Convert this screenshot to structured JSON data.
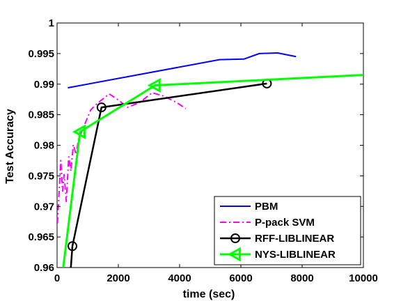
{
  "chart_data": {
    "type": "line",
    "title": "",
    "xlabel": "time (sec)",
    "ylabel": "Test Accuracy",
    "xlim": [
      0,
      10000
    ],
    "ylim": [
      0.96,
      1.0
    ],
    "xticks": [
      0,
      2000,
      4000,
      6000,
      8000,
      10000
    ],
    "xtick_labels": [
      "0",
      "2000",
      "4000",
      "6000",
      "8000",
      "10000"
    ],
    "yticks": [
      0.96,
      0.965,
      0.97,
      0.975,
      0.98,
      0.985,
      0.99,
      0.995,
      1.0
    ],
    "ytick_labels": [
      "0.96",
      "0.965",
      "0.97",
      "0.975",
      "0.98",
      "0.985",
      "0.99",
      "0.995",
      "1"
    ],
    "grid": false,
    "legend_position": "bottom-right",
    "series": [
      {
        "name": "PBM",
        "color": "#0000ff",
        "style": "solid",
        "marker": "none",
        "x": [
          350,
          5300,
          6100,
          6600,
          7200,
          7800
        ],
        "y": [
          0.9894,
          0.994,
          0.9941,
          0.995,
          0.9951,
          0.9945
        ]
      },
      {
        "name": "P-pack SVM",
        "color": "#ff00ff",
        "style": "dashdot",
        "marker": "none",
        "x": [
          10,
          60,
          120,
          180,
          230,
          300,
          380,
          450,
          530,
          620,
          700,
          800,
          950,
          1100,
          1300,
          1500,
          1700,
          2000,
          2300,
          2700,
          3100,
          3500,
          3900,
          4200
        ],
        "y": [
          0.9672,
          0.9718,
          0.9775,
          0.9725,
          0.9752,
          0.9708,
          0.9781,
          0.9758,
          0.9801,
          0.9785,
          0.981,
          0.9822,
          0.984,
          0.9858,
          0.9868,
          0.9876,
          0.9884,
          0.9874,
          0.9862,
          0.987,
          0.9886,
          0.988,
          0.987,
          0.986
        ]
      },
      {
        "name": "RFF-LIBLINEAR",
        "color": "#000000",
        "style": "solid",
        "marker": "circle",
        "x": [
          450,
          500,
          1450,
          6850
        ],
        "y": [
          0.96,
          0.9635,
          0.9862,
          0.9901
        ],
        "marker_points": [
          [
            500,
            0.9635
          ],
          [
            1450,
            0.9862
          ],
          [
            6850,
            0.9901
          ]
        ]
      },
      {
        "name": "NYS-LIBLINEAR",
        "color": "#00ff00",
        "style": "solid",
        "marker": "triangle-left",
        "x": [
          200,
          750,
          3200,
          10000
        ],
        "y": [
          0.96,
          0.9822,
          0.9898,
          0.9915
        ],
        "marker_points": [
          [
            750,
            0.9822
          ],
          [
            3200,
            0.9898
          ]
        ]
      }
    ]
  }
}
